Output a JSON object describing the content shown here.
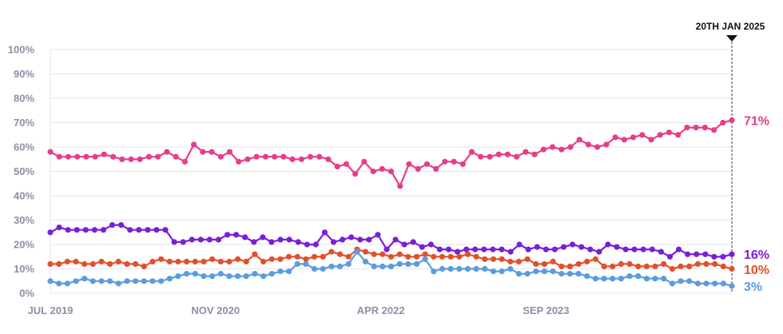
{
  "chart_data": {
    "type": "line",
    "title": "",
    "xlabel": "",
    "ylabel": "",
    "ylim": [
      0,
      100
    ],
    "grid": "horizontal",
    "y_ticks": [
      "0%",
      "10%",
      "20%",
      "30%",
      "40%",
      "50%",
      "60%",
      "70%",
      "80%",
      "90%",
      "100%"
    ],
    "x_ticks": [
      {
        "label": "JUL 2019",
        "index": 0
      },
      {
        "label": "NOV 2020",
        "index": 24
      },
      {
        "label": "APR 2022",
        "index": 48
      },
      {
        "label": "SEP 2023",
        "index": 72
      }
    ],
    "x_start": "JUL 2019",
    "x_end": "20TH JAN 2025",
    "reference_line": {
      "label": "20TH JAN 2025",
      "index": 99
    },
    "series": [
      {
        "color": "#e63d8a",
        "end_label": "71%",
        "values": [
          58,
          56,
          56,
          56,
          56,
          56,
          57,
          56,
          55,
          55,
          55,
          56,
          56,
          58,
          56,
          54,
          61,
          58,
          58,
          56,
          58,
          54,
          55,
          56,
          56,
          56,
          56,
          55,
          55,
          56,
          56,
          55,
          52,
          53,
          49,
          54,
          50,
          51,
          50,
          44,
          53,
          51,
          53,
          51,
          54,
          54,
          53,
          58,
          56,
          56,
          57,
          57,
          56,
          58,
          57,
          59,
          60,
          59,
          60,
          63,
          61,
          60,
          61,
          64,
          63,
          64,
          65,
          63,
          65,
          66,
          65,
          68,
          68,
          68,
          67,
          70,
          71
        ]
      },
      {
        "color": "#7a1fd6",
        "end_label": "16%",
        "values": [
          25,
          27,
          26,
          26,
          26,
          26,
          26,
          28,
          28,
          26,
          26,
          26,
          26,
          26,
          21,
          21,
          22,
          22,
          22,
          22,
          24,
          24,
          23,
          21,
          23,
          21,
          22,
          22,
          21,
          20,
          20,
          25,
          21,
          22,
          23,
          22,
          22,
          24,
          18,
          22,
          20,
          21,
          19,
          20,
          18,
          18,
          17,
          18,
          18,
          18,
          18,
          18,
          17,
          20,
          18,
          19,
          18,
          18,
          19,
          20,
          19,
          18,
          17,
          20,
          19,
          18,
          18,
          18,
          18,
          17,
          15,
          18,
          16,
          16,
          16,
          15,
          15,
          16
        ]
      },
      {
        "color": "#e2502b",
        "end_label": "10%",
        "values": [
          12,
          12,
          13,
          13,
          12,
          12,
          13,
          12,
          13,
          12,
          12,
          11,
          13,
          14,
          13,
          13,
          13,
          13,
          13,
          14,
          13,
          13,
          14,
          13,
          16,
          13,
          14,
          14,
          15,
          15,
          14,
          15,
          15,
          17,
          16,
          15,
          18,
          17,
          16,
          16,
          15,
          16,
          15,
          15,
          16,
          15,
          15,
          15,
          15,
          16,
          15,
          14,
          14,
          14,
          13,
          13,
          14,
          12,
          12,
          13,
          11,
          11,
          12,
          13,
          14,
          11,
          11,
          12,
          12,
          11,
          11,
          11,
          12,
          10,
          11,
          11,
          12,
          12,
          12,
          11,
          10
        ]
      },
      {
        "color": "#5b9be0",
        "end_label": "3%",
        "values": [
          5,
          4,
          4,
          5,
          6,
          5,
          5,
          5,
          4,
          5,
          5,
          5,
          5,
          5,
          6,
          7,
          8,
          8,
          7,
          7,
          8,
          7,
          7,
          7,
          8,
          7,
          8,
          9,
          9,
          12,
          12,
          10,
          10,
          11,
          11,
          12,
          17,
          13,
          11,
          11,
          11,
          12,
          12,
          12,
          14,
          9,
          10,
          10,
          10,
          10,
          10,
          10,
          9,
          9,
          10,
          8,
          8,
          9,
          9,
          9,
          8,
          8,
          8,
          7,
          6,
          6,
          6,
          6,
          7,
          7,
          6,
          6,
          6,
          4,
          5,
          5,
          4,
          4,
          4,
          4,
          3
        ]
      }
    ]
  }
}
